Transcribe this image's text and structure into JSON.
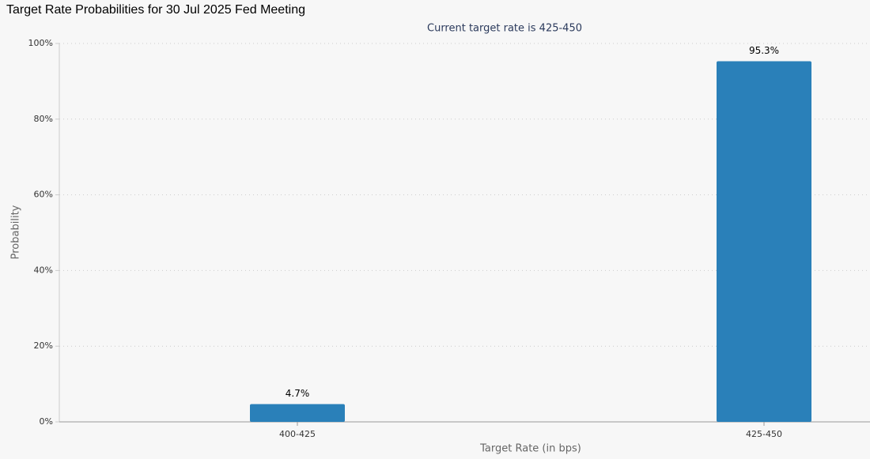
{
  "chart_data": {
    "type": "bar",
    "title": "Target Rate Probabilities for 30 Jul 2025 Fed Meeting",
    "subtitle": "Current target rate is 425-450",
    "x_label": "Target Rate (in bps)",
    "y_label": "Probability",
    "categories": [
      "400-425",
      "425-450"
    ],
    "values": [
      4.7,
      95.3
    ],
    "value_labels": [
      "4.7%",
      "95.3%"
    ],
    "color": "#2a80b9",
    "ylim": [
      0,
      100
    ],
    "yticks": [
      {
        "value": 0,
        "label": "0%"
      },
      {
        "value": 20,
        "label": "20%"
      },
      {
        "value": 40,
        "label": "40%"
      },
      {
        "value": 60,
        "label": "60%"
      },
      {
        "value": 80,
        "label": "80%"
      },
      {
        "value": 100,
        "label": "100%"
      }
    ],
    "grid": true
  }
}
